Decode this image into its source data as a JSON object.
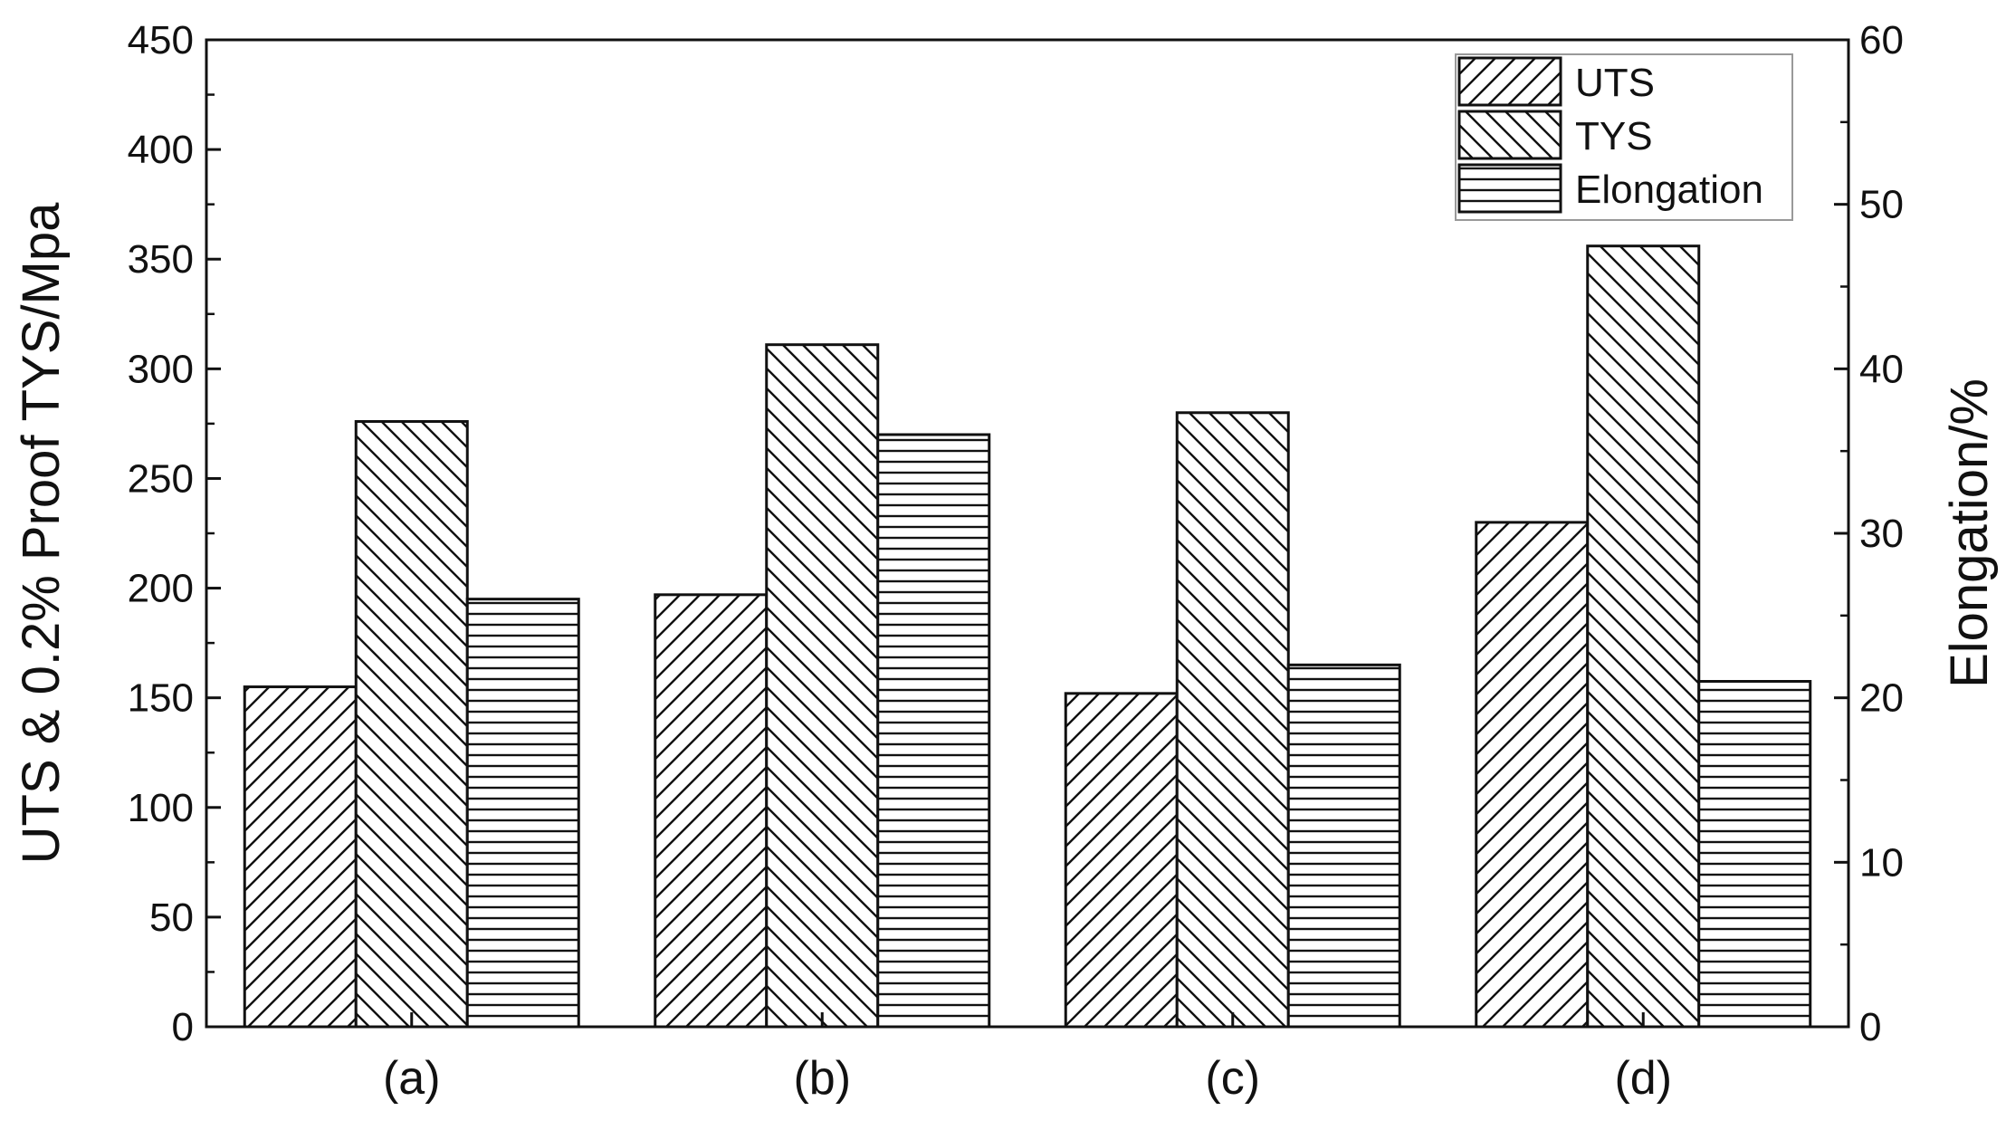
{
  "chart_data": {
    "type": "bar",
    "categories": [
      "(a)",
      "(b)",
      "(c)",
      "(d)"
    ],
    "ylabel": "UTS & 0.2% Proof TYS/Mpa",
    "y2label": "Elongation/%",
    "ylim": [
      0,
      450
    ],
    "y2lim": [
      0,
      60
    ],
    "yticks": [
      0,
      50,
      100,
      150,
      200,
      250,
      300,
      350,
      400,
      450
    ],
    "y2ticks": [
      0,
      10,
      20,
      30,
      40,
      50,
      60
    ],
    "legend_position": "top-right",
    "grid": false,
    "series": [
      {
        "name": "UTS",
        "axis": "left",
        "pattern": "forward-diagonal-hatch",
        "values": [
          155,
          197,
          152,
          230
        ]
      },
      {
        "name": "TYS",
        "axis": "left",
        "pattern": "backward-diagonal-hatch",
        "values": [
          276,
          311,
          280,
          356
        ]
      },
      {
        "name": "Elongation",
        "axis": "right",
        "pattern": "horizontal-hatch",
        "values": [
          26,
          36,
          22,
          21
        ]
      }
    ],
    "colors": {
      "stroke": "#111111",
      "fill": "#ffffff"
    }
  }
}
